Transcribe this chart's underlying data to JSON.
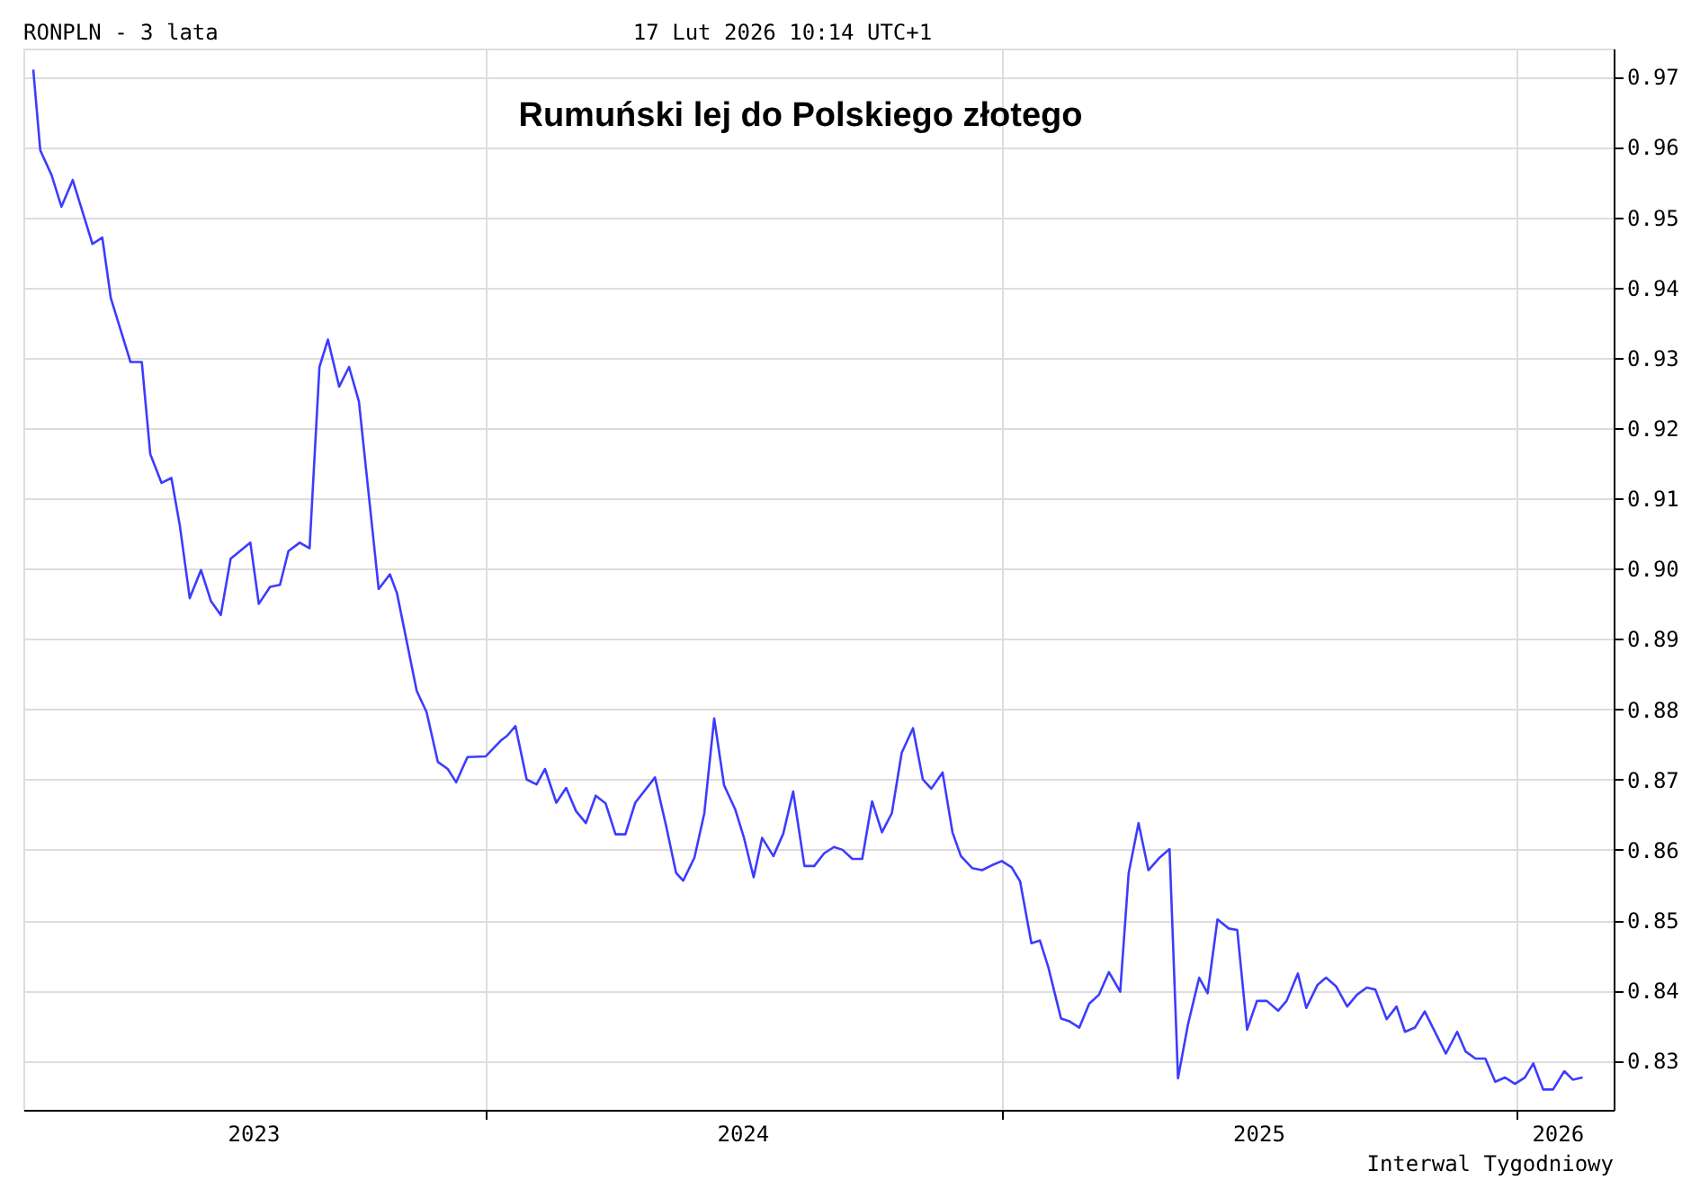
{
  "chart_data": {
    "type": "line",
    "title": "Rumuński lej do Polskiego złotego",
    "annotations": [
      "RONPLN - 3 lata",
      "17 Lut 2026 10:14 UTC+1",
      "Interwal Tygodniowy"
    ],
    "x": [
      "2023-02-14",
      "2023-02-19",
      "2023-02-27",
      "2023-03-06",
      "2023-03-14",
      "2023-03-20",
      "2023-03-28",
      "2023-04-04",
      "2023-04-10",
      "2023-04-24",
      "2023-05-02",
      "2023-05-08",
      "2023-05-16",
      "2023-05-23",
      "2023-05-29",
      "2023-06-05",
      "2023-06-13",
      "2023-06-20",
      "2023-06-27",
      "2023-07-04",
      "2023-07-18",
      "2023-07-24",
      "2023-08-01",
      "2023-08-08",
      "2023-08-14",
      "2023-08-22",
      "2023-08-29",
      "2023-09-05",
      "2023-09-11",
      "2023-09-19",
      "2023-09-26",
      "2023-10-03",
      "2023-10-17",
      "2023-10-25",
      "2023-10-30",
      "2023-11-13",
      "2023-11-20",
      "2023-11-28",
      "2023-12-05",
      "2023-12-11",
      "2023-12-19",
      "2024-01-01",
      "2024-01-12",
      "2024-01-16",
      "2024-01-22",
      "2024-01-30",
      "2024-02-06",
      "2024-02-12",
      "2024-02-20",
      "2024-02-27",
      "2024-03-05",
      "2024-03-12",
      "2024-03-19",
      "2024-03-26",
      "2024-04-02",
      "2024-04-09",
      "2024-04-16",
      "2024-04-30",
      "2024-05-08",
      "2024-05-15",
      "2024-05-20",
      "2024-05-28",
      "2024-06-04",
      "2024-06-11",
      "2024-06-18",
      "2024-06-26",
      "2024-07-02",
      "2024-07-09",
      "2024-07-15",
      "2024-07-23",
      "2024-07-30",
      "2024-08-06",
      "2024-08-14",
      "2024-08-21",
      "2024-08-28",
      "2024-09-04",
      "2024-09-10",
      "2024-09-17",
      "2024-09-24",
      "2024-10-01",
      "2024-10-08",
      "2024-10-15",
      "2024-10-22",
      "2024-10-30",
      "2024-11-06",
      "2024-11-12",
      "2024-11-20",
      "2024-11-27",
      "2024-12-03",
      "2024-12-11",
      "2024-12-18",
      "2024-12-25",
      "2025-01-01",
      "2025-01-08",
      "2025-01-14",
      "2025-01-22",
      "2025-01-28",
      "2025-02-03",
      "2025-02-12",
      "2025-02-18",
      "2025-02-25",
      "2025-03-04",
      "2025-03-11",
      "2025-03-18",
      "2025-03-26",
      "2025-04-01",
      "2025-04-08",
      "2025-04-15",
      "2025-04-23",
      "2025-04-30",
      "2025-05-06",
      "2025-05-13",
      "2025-05-21",
      "2025-05-27",
      "2025-06-03",
      "2025-06-11",
      "2025-06-17",
      "2025-06-24",
      "2025-07-01",
      "2025-07-08",
      "2025-07-16",
      "2025-07-22",
      "2025-07-30",
      "2025-08-05",
      "2025-08-13",
      "2025-08-19",
      "2025-08-26",
      "2025-09-03",
      "2025-09-10",
      "2025-09-17",
      "2025-09-23",
      "2025-10-01",
      "2025-10-08",
      "2025-10-14",
      "2025-10-21",
      "2025-10-28",
      "2025-11-05",
      "2025-11-12",
      "2025-11-20",
      "2025-11-26",
      "2025-12-03",
      "2025-12-10",
      "2025-12-17",
      "2025-12-24",
      "2025-12-31",
      "2026-01-07",
      "2026-01-13",
      "2026-01-20",
      "2026-01-27",
      "2026-02-04",
      "2026-02-10",
      "2026-02-17"
    ],
    "series": [
      {
        "color": "#3c3cff",
        "values": [
          0.971,
          0.9595,
          0.956,
          0.9515,
          0.9553,
          0.9514,
          0.9462,
          0.9471,
          0.9385,
          0.9294,
          0.9294,
          0.9163,
          0.9122,
          0.9129,
          0.9061,
          0.8958,
          0.8998,
          0.8954,
          0.8934,
          0.9014,
          0.9037,
          0.895,
          0.8974,
          0.8977,
          0.9025,
          0.9037,
          0.9029,
          0.9287,
          0.9326,
          0.9259,
          0.9287,
          0.9238,
          0.8971,
          0.8992,
          0.8965,
          0.8826,
          0.8796,
          0.8725,
          0.8715,
          0.8696,
          0.8732,
          0.8733,
          0.8756,
          0.8762,
          0.8776,
          0.87,
          0.8693,
          0.8715,
          0.8667,
          0.8688,
          0.8655,
          0.8638,
          0.8677,
          0.8666,
          0.8622,
          0.8622,
          0.8667,
          0.8703,
          0.8633,
          0.8567,
          0.8556,
          0.8589,
          0.8652,
          0.8787,
          0.8692,
          0.8657,
          0.8618,
          0.8561,
          0.8617,
          0.8591,
          0.8623,
          0.8683,
          0.8577,
          0.8577,
          0.8595,
          0.8604,
          0.86,
          0.8587,
          0.8587,
          0.8669,
          0.8625,
          0.8652,
          0.8738,
          0.8773,
          0.87,
          0.8687,
          0.871,
          0.8625,
          0.8591,
          0.8574,
          0.8571,
          0.8578,
          0.8584,
          0.8575,
          0.8555,
          0.8467,
          0.8471,
          0.8433,
          0.836,
          0.8356,
          0.8347,
          0.8381,
          0.8394,
          0.8426,
          0.8398,
          0.8567,
          0.8638,
          0.8571,
          0.8589,
          0.8601,
          0.8275,
          0.8351,
          0.8418,
          0.8396,
          0.8501,
          0.8488,
          0.8486,
          0.8344,
          0.8385,
          0.8385,
          0.8371,
          0.8385,
          0.8424,
          0.8375,
          0.8408,
          0.8418,
          0.8406,
          0.8377,
          0.8394,
          0.8404,
          0.8401,
          0.8359,
          0.8377,
          0.8341,
          0.8347,
          0.837,
          0.8338,
          0.831,
          0.8341,
          0.8313,
          0.8303,
          0.8303,
          0.827,
          0.8276,
          0.8267,
          0.8276,
          0.8296,
          0.8259,
          0.8259,
          0.8285,
          0.8273,
          0.8276
        ]
      }
    ],
    "xlim": [
      "2023-02-07",
      "2026-03-11"
    ],
    "xticks": [
      {
        "value": "2023-07-20",
        "label": "2023"
      },
      {
        "value": "2024-01-01",
        "label": null
      },
      {
        "value": "2024-07-01",
        "label": "2024"
      },
      {
        "value": "2025-01-01",
        "label": null
      },
      {
        "value": "2025-07-02",
        "label": "2025"
      },
      {
        "value": "2026-01-01",
        "label": null
      },
      {
        "value": "2026-01-30",
        "label": "2026"
      }
    ],
    "ylim": [
      0.823,
      0.974
    ],
    "yticks": [
      {
        "value": 0.83,
        "label": "0.83"
      },
      {
        "value": 0.84,
        "label": "0.84"
      },
      {
        "value": 0.85,
        "label": "0.85"
      },
      {
        "value": 0.86,
        "label": "0.86"
      },
      {
        "value": 0.87,
        "label": "0.87"
      },
      {
        "value": 0.88,
        "label": "0.88"
      },
      {
        "value": 0.89,
        "label": "0.89"
      },
      {
        "value": 0.9,
        "label": "0.90"
      },
      {
        "value": 0.91,
        "label": "0.91"
      },
      {
        "value": 0.92,
        "label": "0.92"
      },
      {
        "value": 0.93,
        "label": "0.93"
      },
      {
        "value": 0.94,
        "label": "0.94"
      },
      {
        "value": 0.95,
        "label": "0.95"
      },
      {
        "value": 0.96,
        "label": "0.96"
      },
      {
        "value": 0.97,
        "label": "0.97"
      }
    ],
    "grid": true,
    "marker": "none",
    "line_style": "solid",
    "legend": false
  }
}
